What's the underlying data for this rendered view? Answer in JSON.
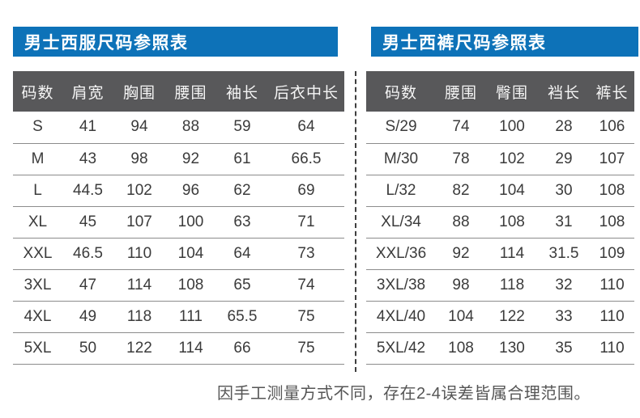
{
  "colors": {
    "title_bar_blue": "#0d72b8",
    "table_header_gray": "#58585a",
    "body_text": "#3b3b3b",
    "row_line": "#8c8c8c",
    "note_text": "#555555"
  },
  "left_table": {
    "title": "男士西服尺码参照表",
    "columns": [
      "码数",
      "肩宽",
      "胸围",
      "腰围",
      "袖长",
      "后衣中长"
    ],
    "rows": [
      [
        "S",
        "41",
        "94",
        "88",
        "59",
        "64"
      ],
      [
        "M",
        "43",
        "98",
        "92",
        "61",
        "66.5"
      ],
      [
        "L",
        "44.5",
        "102",
        "96",
        "62",
        "69"
      ],
      [
        "XL",
        "45",
        "107",
        "100",
        "63",
        "71"
      ],
      [
        "XXL",
        "46.5",
        "110",
        "104",
        "64",
        "73"
      ],
      [
        "3XL",
        "47",
        "114",
        "108",
        "65",
        "74"
      ],
      [
        "4XL",
        "49",
        "118",
        "111",
        "65.5",
        "75"
      ],
      [
        "5XL",
        "50",
        "122",
        "114",
        "66",
        "75"
      ]
    ]
  },
  "right_table": {
    "title": "男士西裤尺码参照表",
    "columns": [
      "码数",
      "腰围",
      "臀围",
      "裆长",
      "裤长"
    ],
    "rows": [
      [
        "S/29",
        "74",
        "100",
        "28",
        "106"
      ],
      [
        "M/30",
        "78",
        "102",
        "29",
        "107"
      ],
      [
        "L/32",
        "82",
        "104",
        "30",
        "108"
      ],
      [
        "XL/34",
        "88",
        "108",
        "31",
        "108"
      ],
      [
        "XXL/36",
        "92",
        "114",
        "31.5",
        "109"
      ],
      [
        "3XL/38",
        "98",
        "118",
        "32",
        "110"
      ],
      [
        "4XL/40",
        "104",
        "122",
        "33",
        "110"
      ],
      [
        "5XL/42",
        "108",
        "130",
        "35",
        "110"
      ]
    ]
  },
  "footer": {
    "note": "因手工测量方式不同，存在2-4误差皆属合理范围。"
  }
}
